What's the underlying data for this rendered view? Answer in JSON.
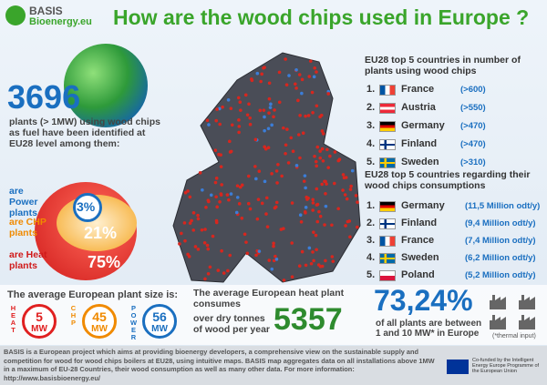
{
  "header": {
    "logo_top": "BASIS",
    "logo_bottom": "Bioenergy.eu",
    "title": "How are the wood chips used in Europe ?"
  },
  "plants": {
    "count": "3696",
    "description": "plants (> 1MW) using wood chips as fuel have been identified at EU28 level among them:"
  },
  "shares": [
    {
      "value": "3%",
      "label": "are Power plants"
    },
    {
      "value": "21%",
      "label": "are CHP plants"
    },
    {
      "value": "75%",
      "label": "are Heat plants"
    }
  ],
  "top_by_plants": {
    "title": "EU28 top 5 countries in number of plants using wood chips",
    "rows": [
      {
        "rank": "1.",
        "country": "France",
        "value": "(>600)"
      },
      {
        "rank": "2.",
        "country": "Austria",
        "value": "(>550)"
      },
      {
        "rank": "3.",
        "country": "Germany",
        "value": "(>470)"
      },
      {
        "rank": "4.",
        "country": "Finland",
        "value": "(>470)"
      },
      {
        "rank": "5.",
        "country": "Sweden",
        "value": "(>310)"
      }
    ]
  },
  "top_by_consumption": {
    "title": "EU28 top 5 countries regarding their wood chips consumptions",
    "rows": [
      {
        "rank": "1.",
        "country": "Germany",
        "value": "(11,5 Million odt/y)"
      },
      {
        "rank": "2.",
        "country": "Finland",
        "value": "(9,4 Million odt/y)"
      },
      {
        "rank": "3.",
        "country": "France",
        "value": "(7,4 Million odt/y)"
      },
      {
        "rank": "4.",
        "country": "Sweden",
        "value": "(6,2 Million odt/y)"
      },
      {
        "rank": "5.",
        "country": "Poland",
        "value": "(5,2 Million odt/y)"
      }
    ]
  },
  "plant_size": {
    "title": "The average European plant size is:",
    "items": [
      {
        "type": "HEAT",
        "value": "5",
        "unit": "MW"
      },
      {
        "type": "CHP",
        "value": "45",
        "unit": "MW"
      },
      {
        "type": "POWER",
        "value": "56",
        "unit": "MW"
      }
    ]
  },
  "heat_plant": {
    "text_before": "The average European heat plant consumes",
    "text_after": "over dry tonnes of wood per year",
    "value": "5357"
  },
  "small_plants": {
    "value": "73,24%",
    "text": "of all plants are between 1 and 10 MW* in Europe",
    "note": "(*thermal input)"
  },
  "footer": {
    "text": "BASIS is a European project which aims at providing bioenergy developers, a comprehensive view on the sustainable supply and competition for wood for wood chips boilers at EU28, using intuitive maps. BASIS map aggregates data on all installations above 1MW in a maximum of EU-28 Countries, their wood consumption as well as many other data. For more information: http://www.basisbioenergy.eu/",
    "eu_note": "Co-funded by the Intelligent Energy Europe Programme of the European Union"
  }
}
